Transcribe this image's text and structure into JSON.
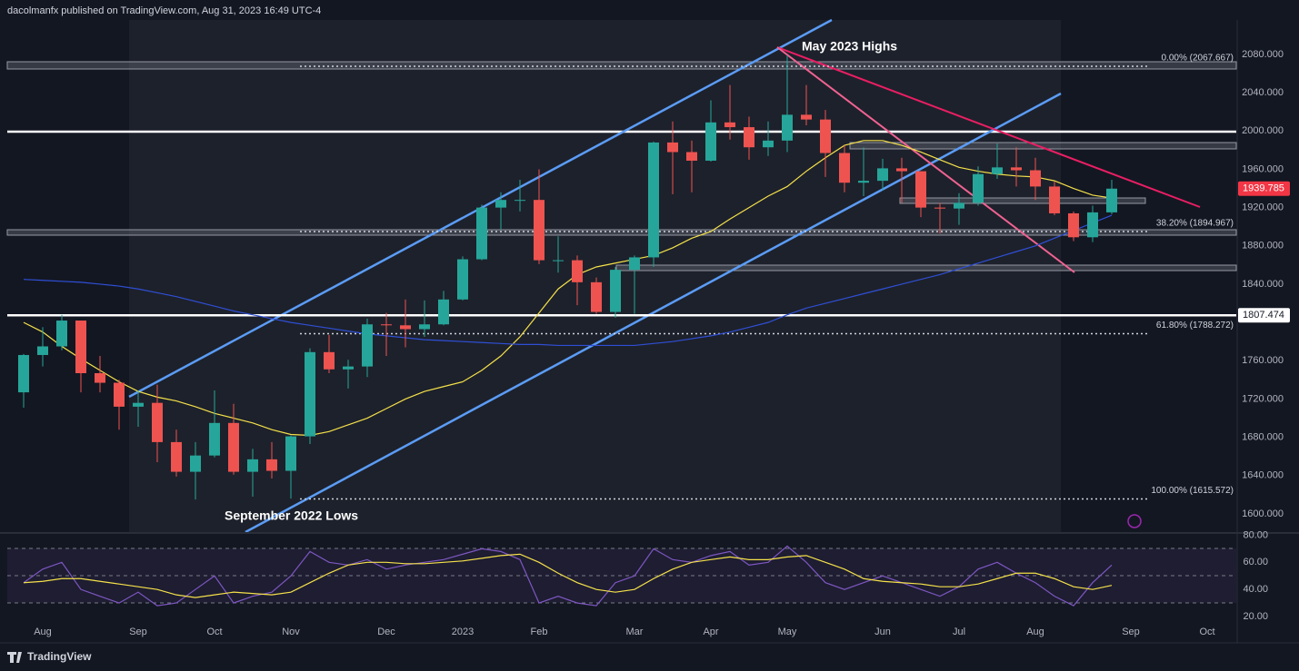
{
  "header": "dacolmanfx published on TradingView.com, Aug 31, 2023 16:49 UTC-4",
  "footer": "TradingView",
  "chart_data": {
    "type": "candlestick",
    "categories": [
      null,
      "Aug",
      null,
      null,
      null,
      null,
      "Sep",
      null,
      null,
      null,
      "Oct",
      null,
      null,
      null,
      "Nov",
      null,
      null,
      null,
      null,
      "Dec",
      null,
      null,
      null,
      "2023",
      null,
      null,
      null,
      "Feb",
      null,
      null,
      null,
      null,
      "Mar",
      null,
      null,
      null,
      "Apr",
      null,
      null,
      null,
      "May",
      null,
      null,
      null,
      null,
      "Jun",
      null,
      null,
      null,
      "Jul",
      null,
      null,
      null,
      "Aug",
      null,
      null,
      null,
      null,
      "Sep",
      null,
      null,
      null,
      "Oct"
    ],
    "open": [
      1727,
      1766,
      1775,
      1802,
      1747,
      1737,
      1712,
      1716,
      1675,
      1644,
      1661,
      1695,
      1644,
      1657,
      1645,
      1681,
      1769,
      1751,
      1754,
      1798,
      1797,
      1793,
      1798,
      1824,
      1866,
      1920,
      1928,
      1928,
      1865,
      1865,
      1842,
      1811,
      1855,
      1868,
      1988,
      1978,
      1969,
      2009,
      2004,
      1983,
      1990,
      2017,
      2012,
      1977,
      1946,
      1948,
      1961,
      1958,
      1920,
      1919,
      1925,
      1955,
      1962,
      1959,
      1942,
      1914,
      1889,
      1915,
      null,
      null,
      null,
      null,
      null
    ],
    "high": [
      1767,
      1795,
      1808,
      1802,
      1765,
      1740,
      1729,
      1735,
      1688,
      1675,
      1729,
      1715,
      1668,
      1675,
      1682,
      1773,
      1787,
      1761,
      1804,
      1810,
      1824,
      1823,
      1833,
      1869,
      1923,
      1936,
      1949,
      1960,
      1890,
      1870,
      1847,
      1858,
      1870,
      1989,
      2010,
      1990,
      2032,
      2048,
      2015,
      2010,
      2079,
      2048,
      2022,
      1985,
      1983,
      1971,
      1972,
      1958,
      1925,
      1935,
      1963,
      1987,
      1983,
      1972,
      1947,
      1916,
      1922,
      1949,
      null,
      null,
      null,
      null,
      null
    ],
    "low": [
      1711,
      1754,
      1771,
      1727,
      1727,
      1688,
      1691,
      1654,
      1639,
      1615,
      1659,
      1641,
      1618,
      1637,
      1616,
      1673,
      1747,
      1731,
      1743,
      1765,
      1774,
      1785,
      1797,
      1823,
      1865,
      1897,
      1916,
      1861,
      1852,
      1818,
      1809,
      1805,
      1809,
      1858,
      1934,
      1936,
      1968,
      1991,
      1970,
      1974,
      1978,
      2006,
      1952,
      1936,
      1932,
      1938,
      1925,
      1910,
      1893,
      1902,
      1922,
      1950,
      1942,
      1928,
      1912,
      1885,
      1884,
      1913,
      null,
      null,
      null,
      null,
      null
    ],
    "close": [
      1766,
      1775,
      1802,
      1747,
      1737,
      1712,
      1716,
      1675,
      1644,
      1661,
      1695,
      1644,
      1657,
      1645,
      1681,
      1769,
      1751,
      1754,
      1798,
      1797,
      1793,
      1798,
      1824,
      1866,
      1920,
      1928,
      1928,
      1865,
      1865,
      1842,
      1811,
      1855,
      1868,
      1988,
      1978,
      1969,
      2009,
      2004,
      1983,
      1990,
      2017,
      2012,
      1977,
      1946,
      1948,
      1961,
      1958,
      1920,
      1919,
      1925,
      1955,
      1962,
      1959,
      1942,
      1914,
      1889,
      1915,
      1939.785,
      null,
      null,
      null,
      null,
      null
    ],
    "up_color": "#26a69a",
    "down_color": "#ef5350",
    "overlays": [
      {
        "color": "#f5e14a",
        "values": [
          1800,
          1790,
          1775,
          1762,
          1750,
          1738,
          1728,
          1722,
          1718,
          1712,
          1705,
          1700,
          1695,
          1688,
          1683,
          1682,
          1686,
          1693,
          1700,
          1710,
          1720,
          1728,
          1733,
          1738,
          1750,
          1765,
          1785,
          1810,
          1835,
          1850,
          1858,
          1862,
          1866,
          1870,
          1878,
          1888,
          1895,
          1908,
          1920,
          1932,
          1942,
          1958,
          1972,
          1985,
          1990,
          1990,
          1985,
          1978,
          1970,
          1962,
          1958,
          1955,
          1953,
          1952,
          1948,
          1940,
          1933,
          1930,
          null,
          null,
          null,
          null,
          null
        ]
      },
      {
        "color": "#2f4fd6",
        "values": [
          1845,
          1844,
          1843,
          1842,
          1840,
          1838,
          1835,
          1831,
          1827,
          1822,
          1817,
          1812,
          1808,
          1804,
          1800,
          1797,
          1794,
          1791,
          1788,
          1786,
          1784,
          1782,
          1781,
          1780,
          1779,
          1778,
          1777,
          1777,
          1776,
          1776,
          1776,
          1776,
          1776,
          1778,
          1780,
          1783,
          1786,
          1790,
          1795,
          1800,
          1808,
          1815,
          1820,
          1825,
          1830,
          1835,
          1840,
          1845,
          1850,
          1856,
          1862,
          1868,
          1874,
          1880,
          1888,
          1896,
          1904,
          1912,
          null,
          null,
          null,
          null,
          null
        ]
      }
    ],
    "ylim": [
      1581,
      2116
    ],
    "yticks": [
      {
        "value": 2080,
        "label": "2080.000"
      },
      {
        "value": 2040,
        "label": "2040.000"
      },
      {
        "value": 2000,
        "label": "2000.000"
      },
      {
        "value": 1960,
        "label": "1960.000"
      },
      {
        "value": 1920,
        "label": "1920.000"
      },
      {
        "value": 1880,
        "label": "1880.000"
      },
      {
        "value": 1840,
        "label": "1840.000"
      },
      {
        "value": 1760,
        "label": "1760.000"
      },
      {
        "value": 1720,
        "label": "1720.000"
      },
      {
        "value": 1680,
        "label": "1680.000"
      },
      {
        "value": 1640,
        "label": "1640.000"
      },
      {
        "value": 1600,
        "label": "1600.000"
      }
    ],
    "price_level": 1807.474,
    "fib_levels": [
      {
        "value": 2067.667,
        "label": "0.00% (2067.667)"
      },
      {
        "value": 1894.967,
        "label": "38.20% (1894.967)"
      },
      {
        "value": 1788.272,
        "label": "61.80% (1788.272)"
      },
      {
        "value": 1615.572,
        "label": "100.00% (1615.572)"
      }
    ],
    "annotations": [
      "May 2023 Highs",
      "September 2022 Lows"
    ],
    "rsi": {
      "color": "#7e57c2",
      "ma_color": "#f5e14a",
      "values": [
        45,
        55,
        60,
        40,
        35,
        30,
        38,
        28,
        30,
        40,
        50,
        30,
        35,
        38,
        50,
        68,
        60,
        58,
        62,
        55,
        58,
        60,
        62,
        66,
        70,
        68,
        62,
        30,
        35,
        30,
        28,
        45,
        50,
        70,
        62,
        60,
        65,
        68,
        58,
        60,
        72,
        60,
        45,
        40,
        45,
        50,
        45,
        40,
        35,
        42,
        55,
        60,
        52,
        45,
        35,
        28,
        45,
        58,
        null,
        null,
        null,
        null,
        null
      ],
      "ma": [
        45,
        46,
        48,
        48,
        46,
        44,
        42,
        40,
        36,
        34,
        36,
        38,
        37,
        36,
        38,
        45,
        52,
        58,
        60,
        60,
        59,
        59,
        60,
        61,
        63,
        65,
        66,
        60,
        52,
        45,
        40,
        38,
        40,
        48,
        55,
        60,
        62,
        64,
        62,
        62,
        64,
        65,
        60,
        55,
        48,
        46,
        45,
        44,
        42,
        42,
        44,
        48,
        52,
        52,
        48,
        42,
        40,
        43,
        null,
        null,
        null,
        null,
        null
      ],
      "ylim": [
        16,
        83
      ],
      "yticks": [
        {
          "value": 80,
          "label": "80.00"
        },
        {
          "value": 60,
          "label": "60.00"
        },
        {
          "value": 40,
          "label": "40.00"
        },
        {
          "value": 20,
          "label": "20.00"
        }
      ]
    }
  }
}
